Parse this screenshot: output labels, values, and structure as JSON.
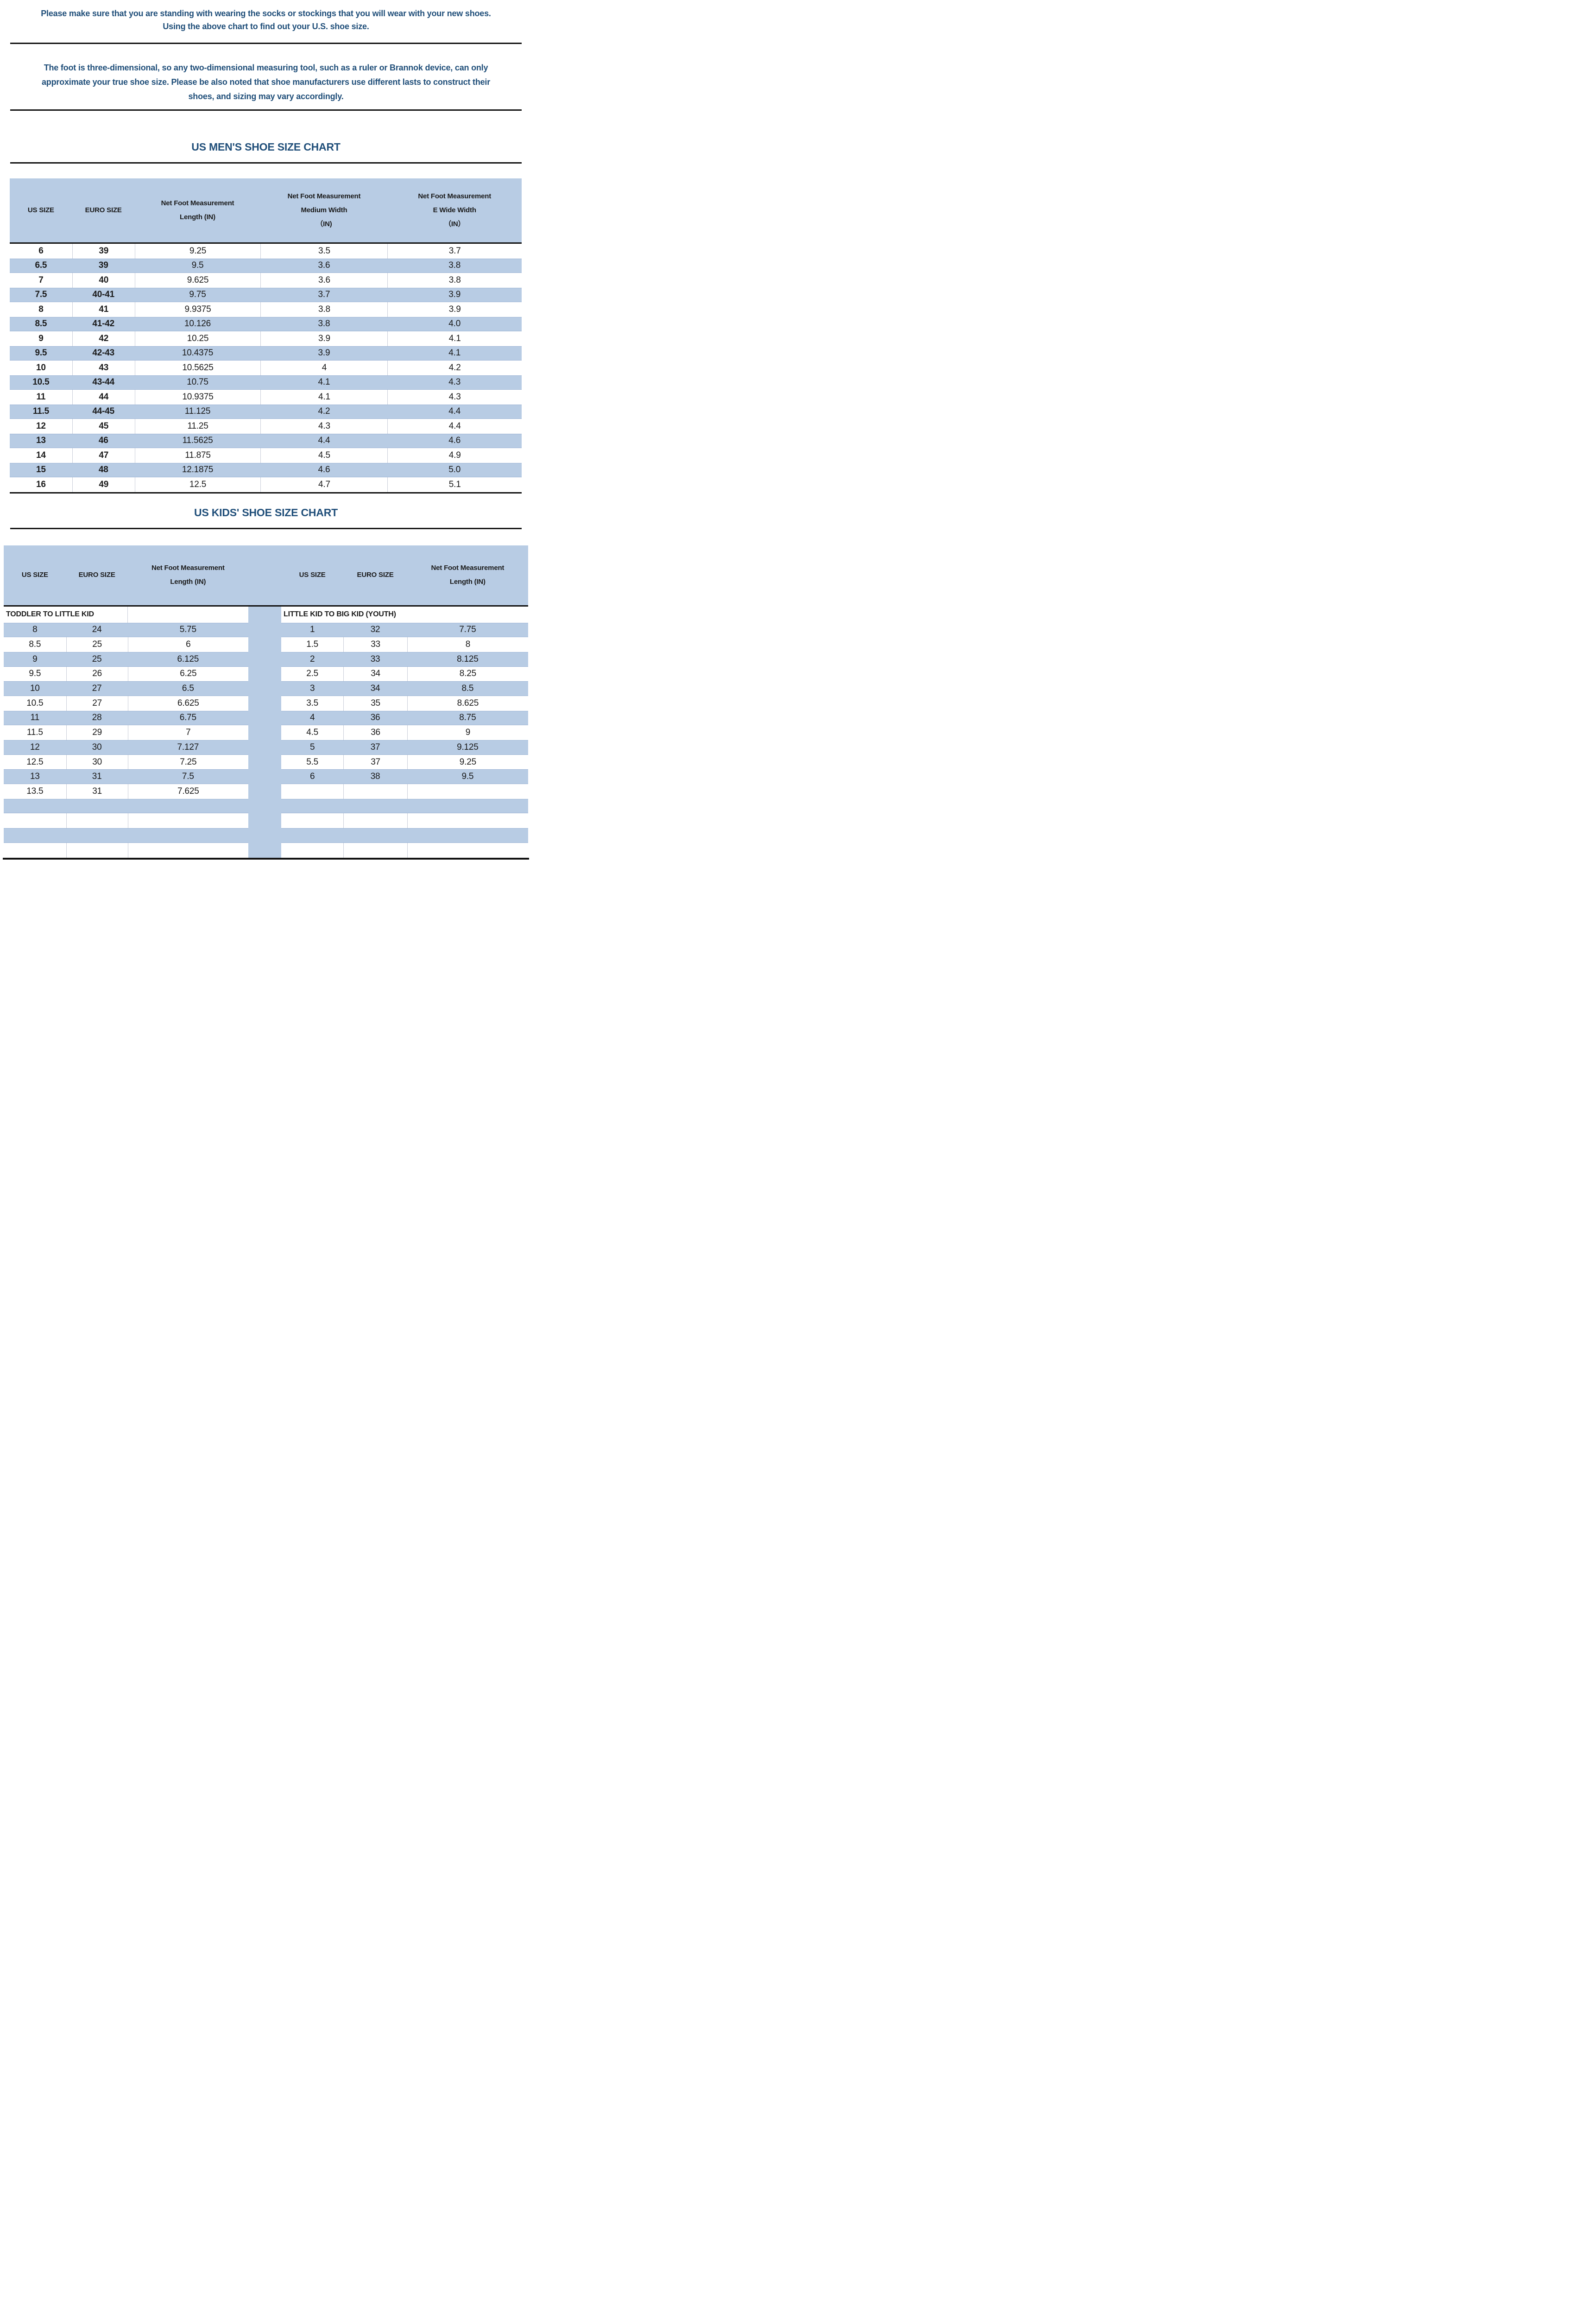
{
  "intro_primary": {
    "lines": [
      "Please make sure that you are standing with wearing the socks or stockings that you will wear with your new shoes.",
      "Using the above chart to find out your U.S. shoe size."
    ]
  },
  "intro_secondary": {
    "lines": [
      "The foot is three-dimensional, so any two-dimensional measuring tool, such as a ruler or Brannok device, can only",
      "approximate your true shoe size. Please be also noted that shoe manufacturers use different lasts to construct their",
      "shoes, and sizing may vary accordingly."
    ]
  },
  "mens_chart": {
    "title": "US MEN'S SHOE SIZE CHART",
    "columns": [
      [
        "US SIZE"
      ],
      [
        "EURO SIZE"
      ],
      [
        "Net Foot Measurement",
        "Length (IN)"
      ],
      [
        "Net Foot Measurement",
        "Medium Width",
        "（IN)"
      ],
      [
        "Net Foot Measurement",
        "E Wide Width",
        "（IN）"
      ]
    ],
    "rows": [
      [
        "6",
        "39",
        "9.25",
        "3.5",
        "3.7"
      ],
      [
        "6.5",
        "39",
        "9.5",
        "3.6",
        "3.8"
      ],
      [
        "7",
        "40",
        "9.625",
        "3.6",
        "3.8"
      ],
      [
        "7.5",
        "40-41",
        "9.75",
        "3.7",
        "3.9"
      ],
      [
        "8",
        "41",
        "9.9375",
        "3.8",
        "3.9"
      ],
      [
        "8.5",
        "41-42",
        "10.126",
        "3.8",
        "4.0"
      ],
      [
        "9",
        "42",
        "10.25",
        "3.9",
        "4.1"
      ],
      [
        "9.5",
        "42-43",
        "10.4375",
        "3.9",
        "4.1"
      ],
      [
        "10",
        "43",
        "10.5625",
        "4",
        "4.2"
      ],
      [
        "10.5",
        "43-44",
        "10.75",
        "4.1",
        "4.3"
      ],
      [
        "11",
        "44",
        "10.9375",
        "4.1",
        "4.3"
      ],
      [
        "11.5",
        "44-45",
        "11.125",
        "4.2",
        "4.4"
      ],
      [
        "12",
        "45",
        "11.25",
        "4.3",
        "4.4"
      ],
      [
        "13",
        "46",
        "11.5625",
        "4.4",
        "4.6"
      ],
      [
        "14",
        "47",
        "11.875",
        "4.5",
        "4.9"
      ],
      [
        "15",
        "48",
        "12.1875",
        "4.6",
        "5.0"
      ],
      [
        "16",
        "49",
        "12.5",
        "4.7",
        "5.1"
      ]
    ]
  },
  "kids_chart": {
    "title": "US KIDS' SHOE SIZE CHART",
    "left": {
      "section_label": "TODDLER TO LITTLE KID",
      "columns": [
        [
          "US SIZE"
        ],
        [
          "EURO SIZE"
        ],
        [
          "Net Foot Measurement",
          "Length (IN)"
        ]
      ],
      "rows": [
        [
          "8",
          "24",
          "5.75"
        ],
        [
          "8.5",
          "25",
          "6"
        ],
        [
          "9",
          "25",
          "6.125"
        ],
        [
          "9.5",
          "26",
          "6.25"
        ],
        [
          "10",
          "27",
          "6.5"
        ],
        [
          "10.5",
          "27",
          "6.625"
        ],
        [
          "11",
          "28",
          "6.75"
        ],
        [
          "11.5",
          "29",
          "7"
        ],
        [
          "12",
          "30",
          "7.127"
        ],
        [
          "12.5",
          "30",
          "7.25"
        ],
        [
          "13",
          "31",
          "7.5"
        ],
        [
          "13.5",
          "31",
          "7.625"
        ],
        [
          "",
          "",
          ""
        ],
        [
          "",
          "",
          ""
        ],
        [
          "",
          "",
          ""
        ],
        [
          "",
          "",
          ""
        ]
      ]
    },
    "right": {
      "section_label": "LITTLE KID TO BIG KID (YOUTH)",
      "columns": [
        [
          "US SIZE"
        ],
        [
          "EURO SIZE"
        ],
        [
          "Net Foot Measurement",
          "Length (IN)"
        ]
      ],
      "rows": [
        [
          "1",
          "32",
          "7.75"
        ],
        [
          "1.5",
          "33",
          "8"
        ],
        [
          "2",
          "33",
          "8.125"
        ],
        [
          "2.5",
          "34",
          "8.25"
        ],
        [
          "3",
          "34",
          "8.5"
        ],
        [
          "3.5",
          "35",
          "8.625"
        ],
        [
          "4",
          "36",
          "8.75"
        ],
        [
          "4.5",
          "36",
          "9"
        ],
        [
          "5",
          "37",
          "9.125"
        ],
        [
          "5.5",
          "37",
          "9.25"
        ],
        [
          "6",
          "38",
          "9.5"
        ],
        [
          "",
          "",
          ""
        ],
        [
          "",
          "",
          ""
        ],
        [
          "",
          "",
          ""
        ],
        [
          "",
          "",
          ""
        ],
        [
          "",
          "",
          ""
        ]
      ]
    }
  },
  "colors": {
    "row_blue": "#b8cce4",
    "title_navy": "#1f4e79",
    "text_black": "#1a1a1a",
    "divider_black": "#111111"
  }
}
